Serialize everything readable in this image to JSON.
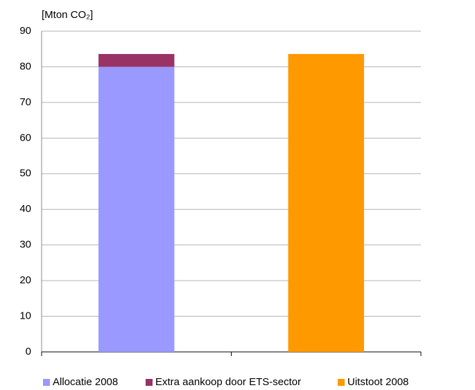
{
  "chart_data": {
    "type": "stacked_bar",
    "y_label": "[Mton CO₂]",
    "categories": [
      null,
      null
    ],
    "series": [
      {
        "name": "Allocatie 2008",
        "color": "#9999ff",
        "values": [
          80,
          null
        ]
      },
      {
        "name": "Extra aankoop door ETS-sector",
        "color": "#993366",
        "values": [
          3.6,
          null
        ]
      },
      {
        "name": "Uitstoot 2008",
        "color": "#ff9900",
        "values": [
          null,
          83.6
        ]
      }
    ],
    "ylim": [
      0,
      90
    ],
    "yticks": [
      0,
      10,
      20,
      30,
      40,
      50,
      60,
      70,
      80,
      90
    ],
    "grid": true,
    "legend": "bottom"
  }
}
